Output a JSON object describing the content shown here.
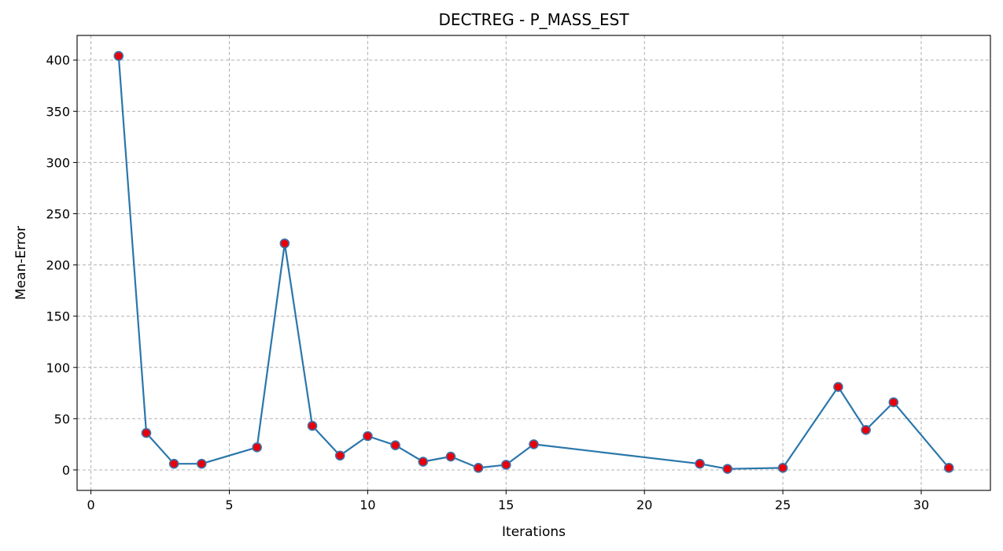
{
  "chart_data": {
    "type": "line",
    "title": "DECTREG - P_MASS_EST",
    "xlabel": "Iterations",
    "ylabel": "Mean-Error",
    "xlim": [
      -0.5,
      32.5
    ],
    "ylim": [
      -20,
      424
    ],
    "xticks": [
      0,
      5,
      10,
      15,
      20,
      25,
      30
    ],
    "yticks": [
      0,
      50,
      100,
      150,
      200,
      250,
      300,
      350,
      400
    ],
    "grid": true,
    "line_color": "#2a77ab",
    "marker_fill": "#e8000b",
    "marker_edge": "#3f72a8",
    "grid_color": "#b0b0b0",
    "series": [
      {
        "x": [
          1,
          2,
          3,
          4,
          6,
          7,
          8,
          9,
          10,
          11,
          12,
          13,
          14,
          15,
          16,
          22,
          23,
          25,
          27,
          28,
          29,
          31
        ],
        "values": [
          404,
          36,
          6,
          6,
          22,
          221,
          43,
          14,
          33,
          24,
          8,
          13,
          2,
          5,
          25,
          6,
          1,
          2,
          81,
          39,
          66,
          2
        ]
      }
    ]
  }
}
